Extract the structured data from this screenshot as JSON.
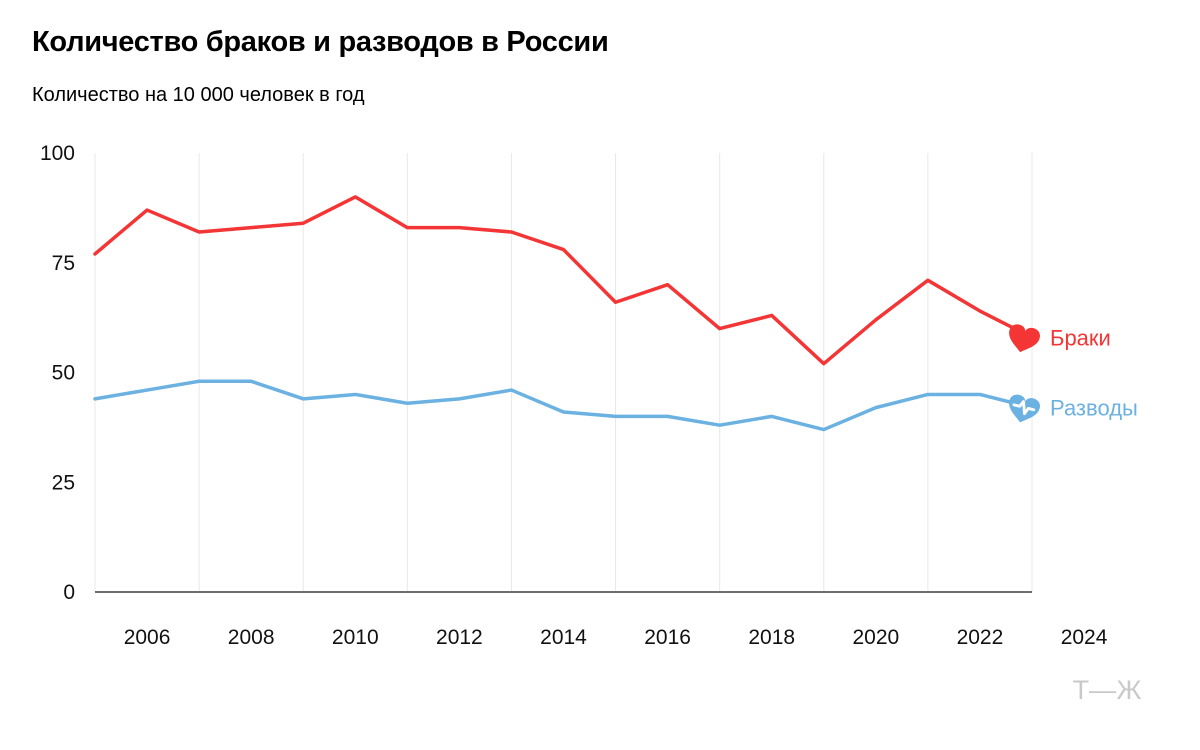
{
  "page": {
    "title": "Количество браков и разводов в России",
    "subtitle": "Количество на 10 000 человек в год",
    "logo": "Т—Ж"
  },
  "chart_data": {
    "type": "line",
    "title": "Количество браков и разводов в России",
    "subtitle": "Количество на 10 000 человек в год",
    "x": [
      2006,
      2007,
      2008,
      2009,
      2010,
      2011,
      2012,
      2013,
      2014,
      2015,
      2016,
      2017,
      2018,
      2019,
      2020,
      2021,
      2022,
      2023,
      2024
    ],
    "x_tick_labels": [
      "2006",
      "2008",
      "2010",
      "2012",
      "2014",
      "2016",
      "2018",
      "2020",
      "2022",
      "2024"
    ],
    "y_ticks": [
      0,
      25,
      50,
      75,
      100
    ],
    "ylim": [
      0,
      100
    ],
    "grid": "vertical-only",
    "legend_position": "right-end-of-line",
    "series": [
      {
        "id": "marriages",
        "name": "Браки",
        "color": "#f43535",
        "marker": "heart",
        "values": [
          77,
          87,
          82,
          83,
          84,
          90,
          83,
          83,
          82,
          78,
          66,
          70,
          60,
          63,
          52,
          62,
          71,
          64,
          58
        ]
      },
      {
        "id": "divorces",
        "name": "Разводы",
        "color": "#6bb1e1",
        "marker": "heart-pulse",
        "values": [
          44,
          46,
          48,
          48,
          44,
          45,
          43,
          44,
          46,
          41,
          40,
          40,
          38,
          40,
          37,
          42,
          45,
          45,
          42
        ]
      }
    ],
    "style": {
      "grid_color": "#e8e8e8",
      "axis_color": "#6e6e6e",
      "text_color": "#111111"
    }
  }
}
